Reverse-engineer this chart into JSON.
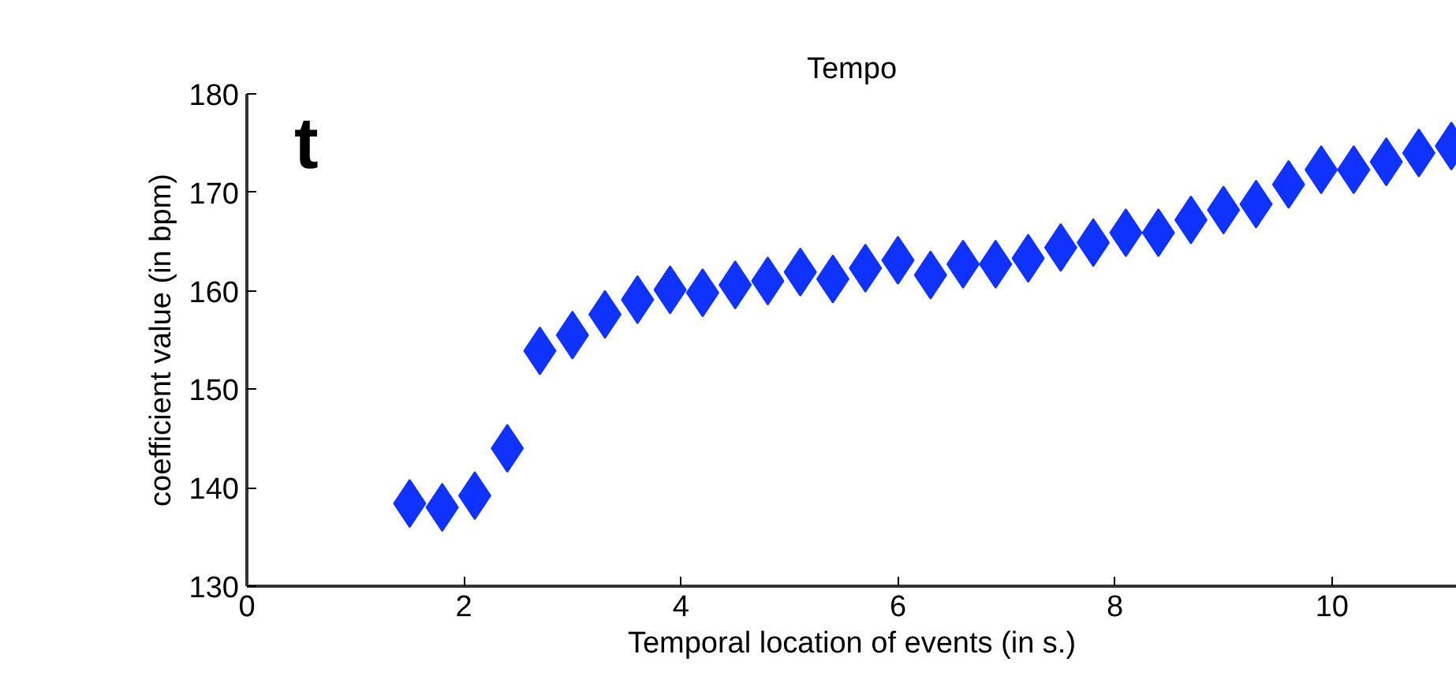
{
  "chart_data": {
    "type": "scatter",
    "title": "Tempo",
    "xlabel": "Temporal location of events (in s.)",
    "ylabel": "coefficient value (in bpm)",
    "annotations": [
      "t"
    ],
    "x": [
      1.5,
      1.8,
      2.1,
      2.4,
      2.7,
      3.0,
      3.3,
      3.6,
      3.9,
      4.2,
      4.5,
      4.8,
      5.1,
      5.4,
      5.7,
      6.0,
      6.3,
      6.6,
      6.9,
      7.2,
      7.5,
      7.8,
      8.1,
      8.4,
      8.7,
      9.0,
      9.3,
      9.6,
      9.9,
      10.2,
      10.5,
      10.8,
      11.1
    ],
    "series": [
      {
        "color": "#0f32ff",
        "values": [
          138.4,
          138.0,
          139.2,
          144.0,
          153.9,
          155.5,
          157.6,
          159.1,
          160.1,
          159.8,
          160.6,
          161.0,
          161.9,
          161.2,
          162.3,
          163.1,
          161.6,
          162.7,
          162.7,
          163.3,
          164.4,
          164.9,
          165.9,
          165.9,
          167.2,
          168.2,
          168.8,
          170.8,
          172.3,
          172.3,
          173.1,
          174.0,
          174.7
        ]
      }
    ],
    "xlim": [
      0,
      11.15
    ],
    "ylim": [
      130,
      180
    ],
    "xticks": [
      0,
      2,
      4,
      6,
      8,
      10
    ],
    "yticks": [
      130,
      140,
      150,
      160,
      170,
      180
    ],
    "grid": false,
    "marker": "diamond"
  }
}
